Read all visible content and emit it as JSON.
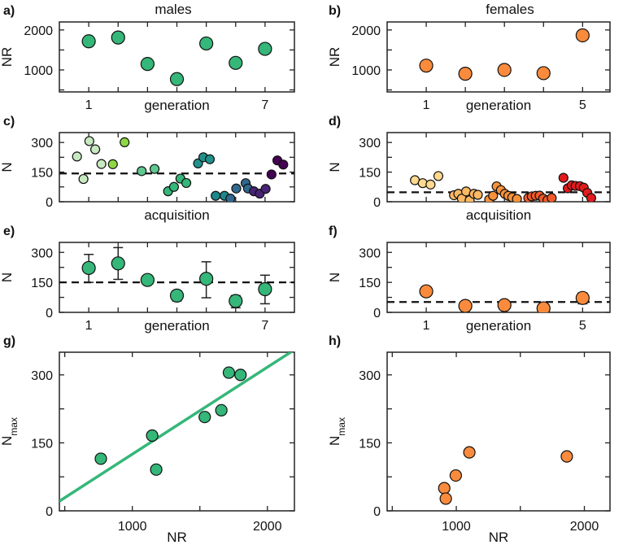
{
  "chart_data": [
    {
      "id": "a",
      "type": "scatter",
      "label": "a)",
      "title": "males",
      "xlabel": "generation",
      "ylabel": "NR",
      "ylabel_sub": "",
      "xlim": [
        0,
        8
      ],
      "ylim": [
        450,
        2200
      ],
      "xticks": [
        1,
        2,
        3,
        4,
        5,
        6,
        7
      ],
      "xtick_labels": [
        "1",
        "",
        "",
        "",
        "",
        "",
        "7"
      ],
      "yticks": [
        500,
        1000,
        1500,
        2000
      ],
      "ytick_labels": [
        "",
        "1000",
        "",
        "2000"
      ],
      "color": "#35b779",
      "points": [
        {
          "x": 1,
          "y": 1716
        },
        {
          "x": 2,
          "y": 1811
        },
        {
          "x": 3,
          "y": 1149
        },
        {
          "x": 4,
          "y": 770
        },
        {
          "x": 5,
          "y": 1662
        },
        {
          "x": 6,
          "y": 1176
        },
        {
          "x": 7,
          "y": 1527
        }
      ]
    },
    {
      "id": "b",
      "type": "scatter",
      "label": "b)",
      "title": "females",
      "xlabel": "generation",
      "ylabel": "NR",
      "ylabel_sub": "",
      "xlim": [
        0,
        5.7
      ],
      "ylim": [
        450,
        2200
      ],
      "xticks": [
        1,
        2,
        3,
        4,
        5
      ],
      "xtick_labels": [
        "1",
        "",
        "",
        "",
        "5"
      ],
      "yticks": [
        500,
        1000,
        1500,
        2000
      ],
      "ytick_labels": [
        "",
        "1000",
        "",
        "2000"
      ],
      "color": "#fb8b3c",
      "points": [
        {
          "x": 1,
          "y": 1108
        },
        {
          "x": 2,
          "y": 905
        },
        {
          "x": 3,
          "y": 1000
        },
        {
          "x": 4,
          "y": 919
        },
        {
          "x": 5,
          "y": 1865
        }
      ]
    },
    {
      "id": "c",
      "type": "scatter",
      "label": "c)",
      "title": "",
      "xlabel": "acquisition",
      "ylabel": "N",
      "ylabel_sub": "",
      "xlim": [
        0,
        40
      ],
      "ylim": [
        0,
        350
      ],
      "xticks": [
        5,
        10,
        15,
        20,
        25,
        30,
        35
      ],
      "xtick_labels": [
        "",
        "",
        "",
        "",
        "",
        "",
        ""
      ],
      "yticks": [
        0,
        75,
        150,
        225,
        300
      ],
      "ytick_labels": [
        "0",
        "",
        "150",
        "",
        "300"
      ],
      "hline": 143,
      "points": [
        {
          "x": 3.0,
          "y": 229,
          "color": "#c7e9c0"
        },
        {
          "x": 4.1,
          "y": 115,
          "color": "#c7e9c0"
        },
        {
          "x": 5.1,
          "y": 307,
          "color": "#c7e9c0"
        },
        {
          "x": 6.1,
          "y": 265,
          "color": "#c7e9c0"
        },
        {
          "x": 7.15,
          "y": 191,
          "color": "#c7e9c0"
        },
        {
          "x": 9.1,
          "y": 190,
          "color": "#8fd744"
        },
        {
          "x": 11.1,
          "y": 301,
          "color": "#8fd744"
        },
        {
          "x": 14.0,
          "y": 155,
          "color": "#5ec98f"
        },
        {
          "x": 16.2,
          "y": 166,
          "color": "#5ec98f"
        },
        {
          "x": 18.5,
          "y": 53,
          "color": "#35b779"
        },
        {
          "x": 19.5,
          "y": 75,
          "color": "#35b779"
        },
        {
          "x": 20.6,
          "y": 117,
          "color": "#35b779"
        },
        {
          "x": 21.6,
          "y": 95,
          "color": "#35b779"
        },
        {
          "x": 23.6,
          "y": 194,
          "color": "#21918c"
        },
        {
          "x": 24.5,
          "y": 225,
          "color": "#21918c"
        },
        {
          "x": 25.6,
          "y": 215,
          "color": "#21918c"
        },
        {
          "x": 26.6,
          "y": 30,
          "color": "#1f868b"
        },
        {
          "x": 28.1,
          "y": 30,
          "color": "#1f868b"
        },
        {
          "x": 29.1,
          "y": 16,
          "color": "#31688e"
        },
        {
          "x": 30.1,
          "y": 67,
          "color": "#31688e"
        },
        {
          "x": 31.7,
          "y": 94,
          "color": "#31688e"
        },
        {
          "x": 32.1,
          "y": 67,
          "color": "#31688e"
        },
        {
          "x": 33.1,
          "y": 53,
          "color": "#482475"
        },
        {
          "x": 34.1,
          "y": 41,
          "color": "#482475"
        },
        {
          "x": 35.1,
          "y": 65,
          "color": "#482475"
        },
        {
          "x": 36.1,
          "y": 138,
          "color": "#440154"
        },
        {
          "x": 37.1,
          "y": 209,
          "color": "#440154"
        },
        {
          "x": 38.1,
          "y": 188,
          "color": "#440154"
        }
      ]
    },
    {
      "id": "d",
      "type": "scatter",
      "label": "d)",
      "title": "",
      "xlabel": "acquisition",
      "ylabel": "N",
      "ylabel_sub": "",
      "xlim": [
        0,
        57
      ],
      "ylim": [
        0,
        350
      ],
      "xticks": [
        10,
        20,
        30,
        40,
        50
      ],
      "xtick_labels": [
        "",
        "",
        "",
        "",
        ""
      ],
      "yticks": [
        0,
        75,
        150,
        225,
        300
      ],
      "ytick_labels": [
        "0",
        "",
        "150",
        "",
        "300"
      ],
      "hline": 48,
      "points": [
        {
          "x": 7.1,
          "y": 109,
          "color": "#fed98e"
        },
        {
          "x": 9.1,
          "y": 94,
          "color": "#fed98e"
        },
        {
          "x": 11.1,
          "y": 87,
          "color": "#fed98e"
        },
        {
          "x": 13.1,
          "y": 130,
          "color": "#fed98e"
        },
        {
          "x": 17.1,
          "y": 33,
          "color": "#fdb863"
        },
        {
          "x": 18.2,
          "y": 40,
          "color": "#fdb863"
        },
        {
          "x": 19.1,
          "y": 16,
          "color": "#fdb863"
        },
        {
          "x": 20.2,
          "y": 52,
          "color": "#fdb863"
        },
        {
          "x": 21.1,
          "y": 7,
          "color": "#fdb863"
        },
        {
          "x": 22.2,
          "y": 40,
          "color": "#fdb863"
        },
        {
          "x": 23.2,
          "y": 35,
          "color": "#fdb863"
        },
        {
          "x": 26.1,
          "y": 11,
          "color": "#f7923a"
        },
        {
          "x": 27.1,
          "y": 30,
          "color": "#f7923a"
        },
        {
          "x": 28.0,
          "y": 78,
          "color": "#f7923a"
        },
        {
          "x": 29.1,
          "y": 59,
          "color": "#f7923a"
        },
        {
          "x": 30.1,
          "y": 40,
          "color": "#f7923a"
        },
        {
          "x": 31.0,
          "y": 30,
          "color": "#f7923a"
        },
        {
          "x": 32.0,
          "y": 22,
          "color": "#f7923a"
        },
        {
          "x": 33.2,
          "y": 14,
          "color": "#f7923a"
        },
        {
          "x": 36.1,
          "y": 19,
          "color": "#f05a2a"
        },
        {
          "x": 37.0,
          "y": 27,
          "color": "#f05a2a"
        },
        {
          "x": 38.0,
          "y": 30,
          "color": "#f05a2a"
        },
        {
          "x": 39.0,
          "y": 31,
          "color": "#f05a2a"
        },
        {
          "x": 39.9,
          "y": 16,
          "color": "#f05a2a"
        },
        {
          "x": 41.0,
          "y": 8,
          "color": "#f05a2a"
        },
        {
          "x": 42.1,
          "y": 19,
          "color": "#f05a2a"
        },
        {
          "x": 45.1,
          "y": 121,
          "color": "#e31a1c"
        },
        {
          "x": 46.2,
          "y": 68,
          "color": "#e31a1c"
        },
        {
          "x": 47.2,
          "y": 83,
          "color": "#e31a1c"
        },
        {
          "x": 48.2,
          "y": 80,
          "color": "#e31a1c"
        },
        {
          "x": 49.3,
          "y": 79,
          "color": "#e31a1c"
        },
        {
          "x": 50.3,
          "y": 71,
          "color": "#e31a1c"
        },
        {
          "x": 51.2,
          "y": 45,
          "color": "#e31a1c"
        },
        {
          "x": 52.2,
          "y": 19,
          "color": "#e31a1c"
        }
      ]
    },
    {
      "id": "e",
      "type": "scatter",
      "label": "e)",
      "title": "",
      "xlabel": "generation",
      "ylabel": "N",
      "ylabel_sub": "",
      "xlim": [
        0,
        8
      ],
      "ylim": [
        0,
        350
      ],
      "xticks": [
        1,
        2,
        3,
        4,
        5,
        6,
        7
      ],
      "xtick_labels": [
        "1",
        "",
        "",
        "",
        "",
        "",
        "7"
      ],
      "yticks": [
        0,
        75,
        150,
        225,
        300
      ],
      "ytick_labels": [
        "0",
        "",
        "150",
        "",
        "300"
      ],
      "hline": 150,
      "color": "#35b779",
      "points": [
        {
          "x": 1,
          "y": 222,
          "err": [
            150,
            290
          ]
        },
        {
          "x": 2,
          "y": 245,
          "err": [
            165,
            324
          ]
        },
        {
          "x": 3,
          "y": 162,
          "err": null
        },
        {
          "x": 4,
          "y": 84,
          "err": [
            57,
            108
          ]
        },
        {
          "x": 5,
          "y": 168,
          "err": [
            73,
            253
          ]
        },
        {
          "x": 6,
          "y": 57,
          "err": [
            23,
            84
          ]
        },
        {
          "x": 7,
          "y": 116,
          "err": [
            43,
            186
          ]
        }
      ]
    },
    {
      "id": "f",
      "type": "scatter",
      "label": "f)",
      "title": "",
      "xlabel": "generation",
      "ylabel": "N",
      "ylabel_sub": "",
      "xlim": [
        0,
        5.7
      ],
      "ylim": [
        0,
        350
      ],
      "xticks": [
        1,
        2,
        3,
        4,
        5
      ],
      "xtick_labels": [
        "1",
        "",
        "",
        "",
        "5"
      ],
      "yticks": [
        0,
        75,
        150,
        225,
        300
      ],
      "ytick_labels": [
        "0",
        "",
        "150",
        "",
        "300"
      ],
      "hline": 52,
      "color": "#fb8b3c",
      "points": [
        {
          "x": 1,
          "y": 105,
          "err": null
        },
        {
          "x": 2,
          "y": 32,
          "err": null
        },
        {
          "x": 3,
          "y": 36,
          "err": null
        },
        {
          "x": 4,
          "y": 20,
          "err": null
        },
        {
          "x": 5,
          "y": 72,
          "err": [
            43,
            97
          ]
        }
      ]
    },
    {
      "id": "g",
      "type": "scatter",
      "label": "g)",
      "title": "",
      "xlabel": "NR",
      "ylabel": "N",
      "ylabel_sub": "max",
      "xlim": [
        460,
        2200
      ],
      "ylim": [
        0,
        350
      ],
      "xticks": [
        500,
        1000,
        1500,
        2000
      ],
      "xtick_labels": [
        "",
        "1000",
        "",
        "2000"
      ],
      "yticks": [
        0,
        75,
        150,
        225,
        300
      ],
      "ytick_labels": [
        "0",
        "",
        "150",
        "",
        "300"
      ],
      "color": "#35b779",
      "fit": {
        "slope": 0.192,
        "intercept": -67,
        "color": "#35b779"
      },
      "points": [
        {
          "x": 767,
          "y": 115
        },
        {
          "x": 1147,
          "y": 166
        },
        {
          "x": 1177,
          "y": 91
        },
        {
          "x": 1536,
          "y": 207
        },
        {
          "x": 1659,
          "y": 222
        },
        {
          "x": 1715,
          "y": 305
        },
        {
          "x": 1801,
          "y": 300
        }
      ]
    },
    {
      "id": "h",
      "type": "scatter",
      "label": "h)",
      "title": "",
      "xlabel": "NR",
      "ylabel": "N",
      "ylabel_sub": "max",
      "xlim": [
        460,
        2200
      ],
      "ylim": [
        0,
        350
      ],
      "xticks": [
        500,
        1000,
        1500,
        2000
      ],
      "xtick_labels": [
        "",
        "1000",
        "",
        "2000"
      ],
      "yticks": [
        0,
        75,
        150,
        225,
        300
      ],
      "ytick_labels": [
        "0",
        "",
        "150",
        "",
        "300"
      ],
      "color": "#fb8b3c",
      "points": [
        {
          "x": 906,
          "y": 50
        },
        {
          "x": 918,
          "y": 27
        },
        {
          "x": 996,
          "y": 78
        },
        {
          "x": 1102,
          "y": 129
        },
        {
          "x": 1863,
          "y": 120
        }
      ]
    }
  ]
}
